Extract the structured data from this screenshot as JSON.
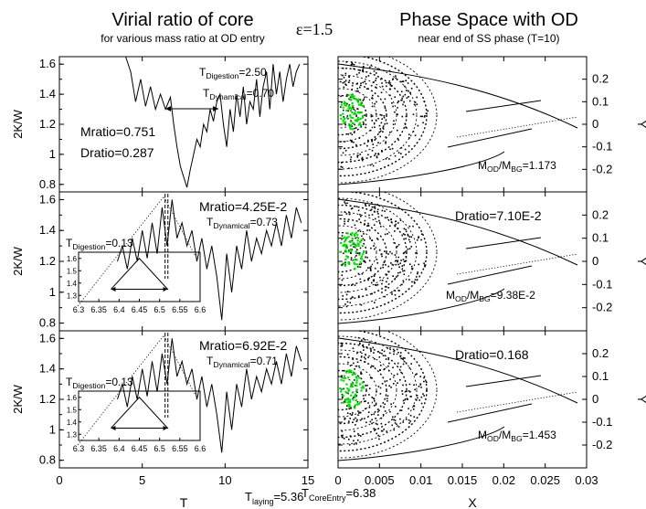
{
  "header": {
    "left_title": "Virial ratio of core",
    "left_subtitle": "for various mass ratio at OD entry",
    "epsilon_label": "ε=1.5",
    "right_title": "Phase Space with OD",
    "right_subtitle": "near end of SS phase (T=10)"
  },
  "bottom": {
    "left_xlabel": "T",
    "right_xlabel": "X",
    "t_laying_main": "T",
    "t_laying_sub": "laying",
    "t_laying_val": "=5.36",
    "t_core_main": "T",
    "t_core_sub": "CoreEntry",
    "t_core_val": "=6.38"
  },
  "colors": {
    "particles_core": "#00dd00",
    "ink": "#000000"
  },
  "chart_data": [
    {
      "type": "line",
      "panel": "left-top",
      "ylabel": "2K/W",
      "xlim": [
        0,
        15
      ],
      "ylim": [
        0.75,
        1.65
      ],
      "yticks": [
        "0.8",
        "1",
        "1.2",
        "1.4",
        "1.6"
      ],
      "x": [
        4.0,
        4.3,
        4.6,
        4.9,
        5.2,
        5.5,
        5.8,
        6.1,
        6.4,
        6.7,
        6.9,
        7.1,
        7.3,
        7.5,
        7.7,
        7.9,
        8.1,
        8.3,
        8.5,
        8.7,
        8.9,
        9.1,
        9.3,
        9.5,
        9.7,
        9.9,
        10.1,
        10.3,
        10.5,
        10.7,
        10.9,
        11.1,
        11.3,
        11.5,
        11.7,
        11.9,
        12.1,
        12.3,
        12.5,
        12.7,
        12.9,
        13.1,
        13.3,
        13.5,
        13.7,
        13.9,
        14.1,
        14.3,
        14.5
      ],
      "y": [
        1.65,
        1.55,
        1.35,
        1.5,
        1.32,
        1.45,
        1.3,
        1.4,
        1.3,
        1.38,
        1.2,
        1.05,
        0.92,
        0.85,
        0.78,
        0.9,
        1.0,
        1.1,
        1.05,
        1.2,
        1.15,
        1.3,
        1.22,
        1.35,
        1.4,
        1.2,
        1.05,
        1.3,
        1.15,
        1.4,
        1.25,
        1.45,
        1.2,
        1.35,
        1.3,
        1.5,
        1.25,
        1.45,
        1.55,
        1.3,
        1.6,
        1.4,
        1.55,
        1.35,
        1.5,
        1.6,
        1.45,
        1.55,
        1.6
      ],
      "annotations": {
        "t_dig_main": "T",
        "t_dig_sub": "Digestion",
        "t_dig_val": "=2.50",
        "t_dyn_main": "T",
        "t_dyn_sub": "Dynamical",
        "t_dyn_val": "=0.70",
        "mratio": "Mratio=0.751",
        "dratio": "Dratio=0.287"
      }
    },
    {
      "type": "line",
      "panel": "left-middle",
      "ylabel": "2K/W",
      "xlim": [
        0,
        15
      ],
      "ylim": [
        0.75,
        1.65
      ],
      "yticks": [
        "0.8",
        "1",
        "1.2",
        "1.4",
        "1.6"
      ],
      "x": [
        3.5,
        3.8,
        4.1,
        4.4,
        4.7,
        5.0,
        5.3,
        5.6,
        5.9,
        6.2,
        6.5,
        6.8,
        7.1,
        7.4,
        7.7,
        8.0,
        8.3,
        8.6,
        8.9,
        9.2,
        9.5,
        9.8,
        10.1,
        10.4,
        10.7,
        11.0,
        11.3,
        11.6,
        11.9,
        12.2,
        12.5,
        12.8,
        13.1,
        13.4,
        13.7,
        14.0,
        14.3,
        14.6
      ],
      "y": [
        1.2,
        1.3,
        1.15,
        1.35,
        1.2,
        1.4,
        1.22,
        1.45,
        1.25,
        1.55,
        1.3,
        1.6,
        1.35,
        1.45,
        1.3,
        1.4,
        1.2,
        1.35,
        1.15,
        1.3,
        1.1,
        0.82,
        1.25,
        1.0,
        1.3,
        1.15,
        1.4,
        1.2,
        1.35,
        1.25,
        1.4,
        1.3,
        1.45,
        1.3,
        1.5,
        1.35,
        1.55,
        1.45
      ],
      "vlines": [
        6.38,
        6.55
      ],
      "annotations": {
        "mratio": "Mratio=4.25E-2",
        "t_dyn_main": "T",
        "t_dyn_sub": "Dynamical",
        "t_dyn_val": "=0.73",
        "t_dig_main": "T",
        "t_dig_sub": "Digestion",
        "t_dig_val": "=0.13"
      },
      "inset": {
        "xlim": [
          6.3,
          6.6
        ],
        "ylim": [
          1.25,
          1.65
        ],
        "xticks": [
          "6.3",
          "6.35",
          "6.4",
          "6.45",
          "6.5",
          "6.55",
          "6.6"
        ],
        "yticks": [
          "1.3",
          "1.4",
          "1.5",
          "1.6"
        ],
        "x": [
          6.38,
          6.45,
          6.52,
          6.38
        ],
        "y": [
          1.35,
          1.6,
          1.35,
          1.35
        ]
      }
    },
    {
      "type": "line",
      "panel": "left-bottom",
      "ylabel": "2K/W",
      "xlim": [
        0,
        15
      ],
      "ylim": [
        0.75,
        1.65
      ],
      "yticks": [
        "0.8",
        "1",
        "1.2",
        "1.4",
        "1.6"
      ],
      "xticks": [
        "0",
        "5",
        "10",
        "15"
      ],
      "x": [
        3.5,
        3.8,
        4.1,
        4.4,
        4.7,
        5.0,
        5.3,
        5.6,
        5.9,
        6.2,
        6.5,
        6.8,
        7.1,
        7.4,
        7.7,
        8.0,
        8.3,
        8.6,
        8.9,
        9.2,
        9.5,
        9.8,
        10.1,
        10.4,
        10.7,
        11.0,
        11.3,
        11.6,
        11.9,
        12.2,
        12.5,
        12.8,
        13.1,
        13.4,
        13.7,
        14.0,
        14.3,
        14.6
      ],
      "y": [
        1.2,
        1.3,
        1.15,
        1.35,
        1.2,
        1.4,
        1.22,
        1.45,
        1.25,
        1.5,
        1.3,
        1.6,
        1.35,
        1.45,
        1.3,
        1.4,
        1.2,
        1.35,
        1.15,
        1.3,
        1.1,
        0.85,
        1.25,
        1.0,
        1.3,
        1.15,
        1.4,
        1.2,
        1.35,
        1.25,
        1.4,
        1.3,
        1.45,
        1.3,
        1.5,
        1.35,
        1.55,
        1.45
      ],
      "vlines": [
        6.38,
        6.55
      ],
      "annotations": {
        "mratio": "Mratio=6.92E-2",
        "t_dyn_main": "T",
        "t_dyn_sub": "Dynamical",
        "t_dyn_val": "=0.71",
        "t_dig_main": "T",
        "t_dig_sub": "Digestion",
        "t_dig_val": "=0.13"
      },
      "inset": {
        "xlim": [
          6.3,
          6.6
        ],
        "ylim": [
          1.25,
          1.65
        ],
        "xticks": [
          "6.3",
          "6.35",
          "6.4",
          "6.45",
          "6.5",
          "6.55",
          "6.6"
        ],
        "yticks": [
          "1.3",
          "1.4",
          "1.5",
          "1.6"
        ],
        "x": [
          6.38,
          6.45,
          6.52,
          6.38
        ],
        "y": [
          1.35,
          1.6,
          1.35,
          1.35
        ]
      }
    },
    {
      "type": "scatter",
      "panel": "right-top",
      "ylabel": "Y",
      "xlim": [
        0,
        0.03
      ],
      "ylim": [
        -0.3,
        0.3
      ],
      "yticks": [
        "0.2",
        "0.1",
        "0",
        "-0.1",
        "-0.2"
      ],
      "annotations": {
        "m_main": "M",
        "m_sub1": "OD",
        "m_mid": "/M",
        "m_sub2": "BG",
        "m_val": "=1.173"
      }
    },
    {
      "type": "scatter",
      "panel": "right-middle",
      "ylabel": "Y",
      "xlim": [
        0,
        0.03
      ],
      "ylim": [
        -0.3,
        0.3
      ],
      "yticks": [
        "0.2",
        "0.1",
        "0",
        "-0.1",
        "-0.2"
      ],
      "annotations": {
        "dratio": "Dratio=7.10E-2",
        "m_main": "M",
        "m_sub1": "OD",
        "m_mid": "/M",
        "m_sub2": "BG",
        "m_val": "=9.38E-2"
      }
    },
    {
      "type": "scatter",
      "panel": "right-bottom",
      "ylabel": "Y",
      "xlim": [
        0,
        0.03
      ],
      "ylim": [
        -0.3,
        0.3
      ],
      "yticks": [
        "0.2",
        "0.1",
        "0",
        "-0.1",
        "-0.2"
      ],
      "xticks": [
        "0",
        "0.005",
        "0.01",
        "0.015",
        "0.02",
        "0.025",
        "0.03"
      ],
      "annotations": {
        "dratio": "Dratio=0.168",
        "m_main": "M",
        "m_sub1": "OD",
        "m_mid": "/M",
        "m_sub2": "BG",
        "m_val": "=1.453"
      }
    }
  ]
}
